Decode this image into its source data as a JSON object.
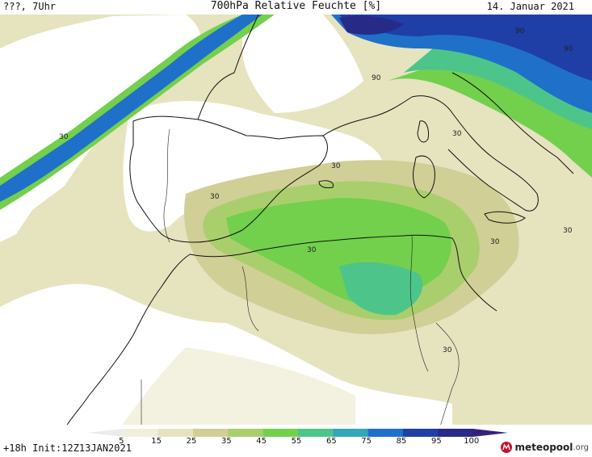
{
  "header": {
    "left_label": "???, 7Uhr",
    "title": "700hPa Relative Feuchte [%]",
    "date": "14. Januar 2021"
  },
  "footer": {
    "run_label": "+18h  Init:12Z13JAN2021",
    "logo_text": "meteopool",
    "logo_tld": ".org"
  },
  "legend": {
    "ticks": [
      "5",
      "15",
      "25",
      "35",
      "45",
      "55",
      "65",
      "75",
      "85",
      "95",
      "100"
    ],
    "colors": [
      "#ececec",
      "#f1eedd",
      "#e6e3bf",
      "#d0cf95",
      "#a9cf6c",
      "#72d04c",
      "#4dc58a",
      "#33a8b7",
      "#1f70c9",
      "#1f3ea6",
      "#272a86",
      "#35217a"
    ]
  },
  "contour_labels": [
    {
      "text": "90"
    },
    {
      "text": "90"
    },
    {
      "text": "90"
    },
    {
      "text": "30"
    },
    {
      "text": "30"
    },
    {
      "text": "30"
    },
    {
      "text": "30"
    },
    {
      "text": "30"
    },
    {
      "text": "30"
    },
    {
      "text": "30"
    },
    {
      "text": "30"
    }
  ],
  "colors": {
    "dry": "#ffffff",
    "low": "#e6e3bf",
    "mid": "#d0cf95",
    "moist": "#a9cf6c",
    "green": "#72d04c",
    "teal": "#4dc58a",
    "blue": "#1f70c9",
    "deep": "#1f3ea6",
    "coast": "#111111"
  }
}
